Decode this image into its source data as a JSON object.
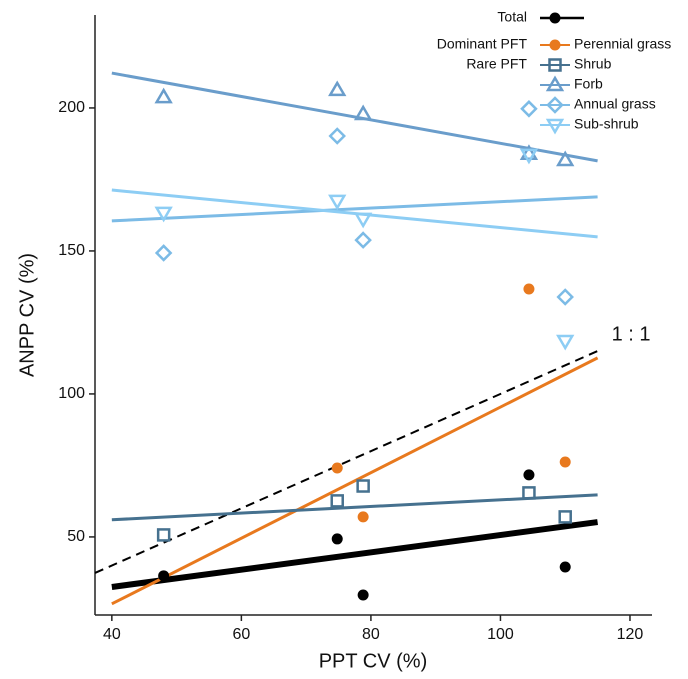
{
  "chart_data": {
    "type": "scatter",
    "x_label": "PPT CV (%)",
    "y_label": "ANPP CV (%)",
    "xlim": [
      37.4,
      123.4
    ],
    "ylim": [
      22.7,
      232.5
    ],
    "xticks": [
      40,
      60,
      80,
      100,
      120
    ],
    "yticks": [
      50,
      100,
      150,
      200
    ],
    "grid": false,
    "x": [
      48,
      74.8,
      78.8,
      104.4,
      110
    ],
    "fit_x": [
      40,
      115
    ],
    "series": [
      {
        "name": "Total",
        "color": "#000000",
        "marker": "circle-filled",
        "values": [
          36.4,
          49.3,
          29.7,
          71.7,
          39.5
        ],
        "fit": [
          32.5,
          55.2
        ]
      },
      {
        "name": "Perennial grass",
        "legend_group": "Dominant PFT",
        "color": "#e8791e",
        "marker": "circle-filled",
        "values": [
          null,
          74.1,
          57,
          136.7,
          76.2
        ],
        "fit": [
          26.6,
          112.6
        ]
      },
      {
        "name": "Shrub",
        "legend_group": "Rare PFT",
        "color": "#46718f",
        "marker": "square",
        "values": [
          50.7,
          62.6,
          67.8,
          65.4,
          57
        ],
        "fit": [
          56,
          64.7
        ]
      },
      {
        "name": "Forb",
        "color": "#6a9dcb",
        "marker": "triangle-up",
        "values": [
          203.8,
          206.3,
          197.9,
          184,
          181.8
        ],
        "fit": [
          212.2,
          181.5
        ]
      },
      {
        "name": "Annual grass",
        "color": "#7cbbe6",
        "marker": "diamond",
        "values": [
          149.3,
          190.2,
          153.8,
          199.7,
          133.9
        ],
        "fit": [
          160.5,
          168.9
        ]
      },
      {
        "name": "Sub-shrub",
        "color": "#8dcdf4",
        "marker": "triangle-down",
        "values": [
          163.3,
          167.5,
          161.2,
          183.6,
          118.5
        ],
        "fit": [
          171.3,
          154.9
        ]
      }
    ],
    "reference_line": {
      "label": "1 : 1",
      "x": [
        37.4,
        115
      ],
      "values": [
        37.4,
        115
      ]
    }
  }
}
